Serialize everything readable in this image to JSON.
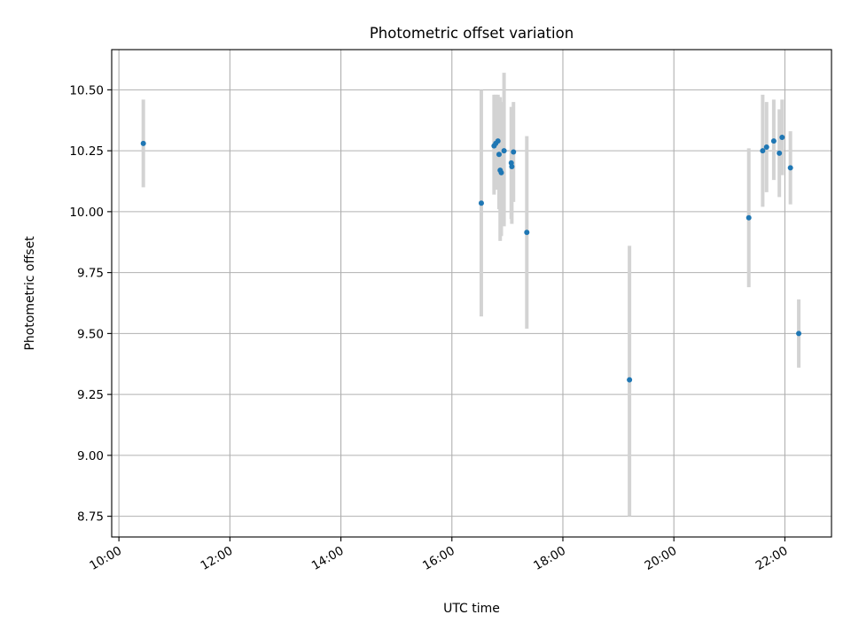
{
  "chart_data": {
    "type": "scatter",
    "title": "Photometric offset variation",
    "xlabel": "UTC time",
    "ylabel": "Photometric offset",
    "x_unit": "hours (UTC)",
    "xlim": [
      9.87,
      22.84
    ],
    "ylim": [
      8.665,
      10.665
    ],
    "xticks": [
      {
        "value": 10,
        "label": "10:00"
      },
      {
        "value": 12,
        "label": "12:00"
      },
      {
        "value": 14,
        "label": "14:00"
      },
      {
        "value": 16,
        "label": "16:00"
      },
      {
        "value": 18,
        "label": "18:00"
      },
      {
        "value": 20,
        "label": "20:00"
      },
      {
        "value": 22,
        "label": "22:00"
      }
    ],
    "yticks": [
      {
        "value": 8.75,
        "label": "8.75"
      },
      {
        "value": 9.0,
        "label": "9.00"
      },
      {
        "value": 9.25,
        "label": "9.25"
      },
      {
        "value": 9.5,
        "label": "9.50"
      },
      {
        "value": 9.75,
        "label": "9.75"
      },
      {
        "value": 10.0,
        "label": "10.00"
      },
      {
        "value": 10.25,
        "label": "10.25"
      },
      {
        "value": 10.5,
        "label": "10.50"
      }
    ],
    "grid": true,
    "marker_color": "#1f77b4",
    "errorbar_color": "#d3d3d3",
    "points": [
      {
        "x": 10.44,
        "y": 10.28,
        "low": 10.1,
        "high": 10.46
      },
      {
        "x": 16.53,
        "y": 10.035,
        "low": 9.57,
        "high": 10.5
      },
      {
        "x": 16.76,
        "y": 10.27,
        "low": 10.07,
        "high": 10.48
      },
      {
        "x": 16.79,
        "y": 10.28,
        "low": 10.09,
        "high": 10.48
      },
      {
        "x": 16.83,
        "y": 10.29,
        "low": 10.1,
        "high": 10.48
      },
      {
        "x": 16.85,
        "y": 10.235,
        "low": 10.01,
        "high": 10.47
      },
      {
        "x": 16.87,
        "y": 10.17,
        "low": 9.88,
        "high": 10.47
      },
      {
        "x": 16.89,
        "y": 10.16,
        "low": 9.9,
        "high": 10.45
      },
      {
        "x": 16.94,
        "y": 10.25,
        "low": 9.94,
        "high": 10.57
      },
      {
        "x": 17.07,
        "y": 10.2,
        "low": 9.97,
        "high": 10.43
      },
      {
        "x": 17.08,
        "y": 10.185,
        "low": 9.95,
        "high": 10.42
      },
      {
        "x": 17.11,
        "y": 10.245,
        "low": 10.04,
        "high": 10.45
      },
      {
        "x": 17.35,
        "y": 9.915,
        "low": 9.52,
        "high": 10.31
      },
      {
        "x": 19.2,
        "y": 9.31,
        "low": 8.75,
        "high": 9.86
      },
      {
        "x": 21.35,
        "y": 9.975,
        "low": 9.69,
        "high": 10.26
      },
      {
        "x": 21.6,
        "y": 10.25,
        "low": 10.02,
        "high": 10.48
      },
      {
        "x": 21.67,
        "y": 10.265,
        "low": 10.08,
        "high": 10.45
      },
      {
        "x": 21.8,
        "y": 10.29,
        "low": 10.13,
        "high": 10.46
      },
      {
        "x": 21.9,
        "y": 10.24,
        "low": 10.06,
        "high": 10.42
      },
      {
        "x": 21.95,
        "y": 10.305,
        "low": 10.15,
        "high": 10.46
      },
      {
        "x": 22.1,
        "y": 10.18,
        "low": 10.03,
        "high": 10.33
      },
      {
        "x": 22.25,
        "y": 9.5,
        "low": 9.36,
        "high": 9.64
      }
    ]
  }
}
